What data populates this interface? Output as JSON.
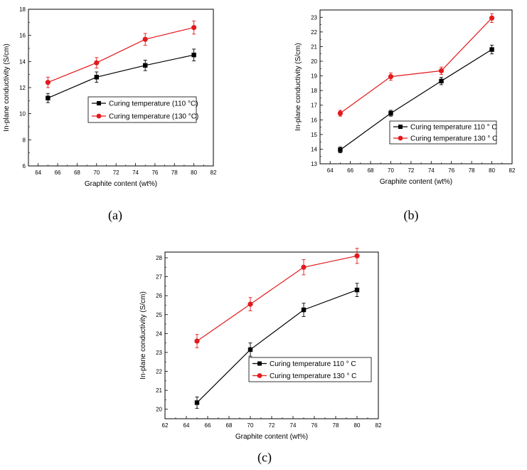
{
  "chart_data": [
    {
      "id": "a",
      "type": "line",
      "caption": "(a)",
      "xlabel": "Graphite content (wt%)",
      "ylabel": "In-plane conductivity (S/cm)",
      "xlim": [
        63,
        82
      ],
      "ylim": [
        6,
        18
      ],
      "xticks": [
        64,
        66,
        68,
        70,
        72,
        74,
        76,
        78,
        80,
        82
      ],
      "yticks": [
        6,
        8,
        10,
        12,
        14,
        16,
        18
      ],
      "grid": false,
      "legend_position": "center-right",
      "series": [
        {
          "name": "Curing temperature (110 °C)",
          "color": "#000000",
          "marker": "square",
          "x": [
            65,
            70,
            75,
            80
          ],
          "y": [
            11.2,
            12.8,
            13.7,
            14.5
          ],
          "err": [
            0.35,
            0.4,
            0.4,
            0.45
          ]
        },
        {
          "name": "Curing temperature (130 °C)",
          "color": "#e31a1c",
          "marker": "circle",
          "x": [
            65,
            70,
            75,
            80
          ],
          "y": [
            12.4,
            13.9,
            15.7,
            16.6
          ],
          "err": [
            0.4,
            0.4,
            0.45,
            0.5
          ]
        }
      ]
    },
    {
      "id": "b",
      "type": "line",
      "caption": "(b)",
      "xlabel": "Graphite content (wt%)",
      "ylabel": "In-plane conductivity (S/cm)",
      "xlim": [
        63,
        82
      ],
      "ylim": [
        13,
        23.5
      ],
      "xticks": [
        64,
        66,
        68,
        70,
        72,
        74,
        76,
        78,
        80,
        82
      ],
      "yticks": [
        13,
        14,
        15,
        16,
        17,
        18,
        19,
        20,
        21,
        22,
        23
      ],
      "grid": false,
      "legend_position": "lower-right",
      "series": [
        {
          "name": "Curing temperature 110 ° C",
          "color": "#000000",
          "marker": "square",
          "x": [
            65,
            70,
            75,
            80
          ],
          "y": [
            13.95,
            16.45,
            18.65,
            20.8
          ],
          "err": [
            0.2,
            0.2,
            0.25,
            0.3
          ]
        },
        {
          "name": "Curing temperature 130 ° C",
          "color": "#e31a1c",
          "marker": "circle",
          "x": [
            65,
            70,
            75,
            80
          ],
          "y": [
            16.45,
            18.95,
            19.35,
            22.95
          ],
          "err": [
            0.2,
            0.25,
            0.25,
            0.3
          ]
        }
      ]
    },
    {
      "id": "c",
      "type": "line",
      "caption": "(c)",
      "xlabel": "Graphite content (wt%)",
      "ylabel": "In-plane conductivity (S/cm)",
      "xlim": [
        62,
        82
      ],
      "ylim": [
        19.5,
        28.3
      ],
      "xticks": [
        62,
        64,
        66,
        68,
        70,
        72,
        74,
        76,
        78,
        80,
        82
      ],
      "yticks": [
        20,
        21,
        22,
        23,
        24,
        25,
        26,
        27,
        28
      ],
      "grid": false,
      "legend_position": "lower-right",
      "series": [
        {
          "name": "Curing temperature 110 ° C",
          "color": "#000000",
          "marker": "square",
          "x": [
            65,
            70,
            75,
            80
          ],
          "y": [
            20.35,
            23.15,
            25.25,
            26.3
          ],
          "err": [
            0.3,
            0.35,
            0.35,
            0.35
          ]
        },
        {
          "name": "Curing temperature 130 ° C",
          "color": "#e31a1c",
          "marker": "circle",
          "x": [
            65,
            70,
            75,
            80
          ],
          "y": [
            23.6,
            25.55,
            27.5,
            28.1
          ],
          "err": [
            0.35,
            0.35,
            0.4,
            0.4
          ]
        }
      ]
    }
  ]
}
